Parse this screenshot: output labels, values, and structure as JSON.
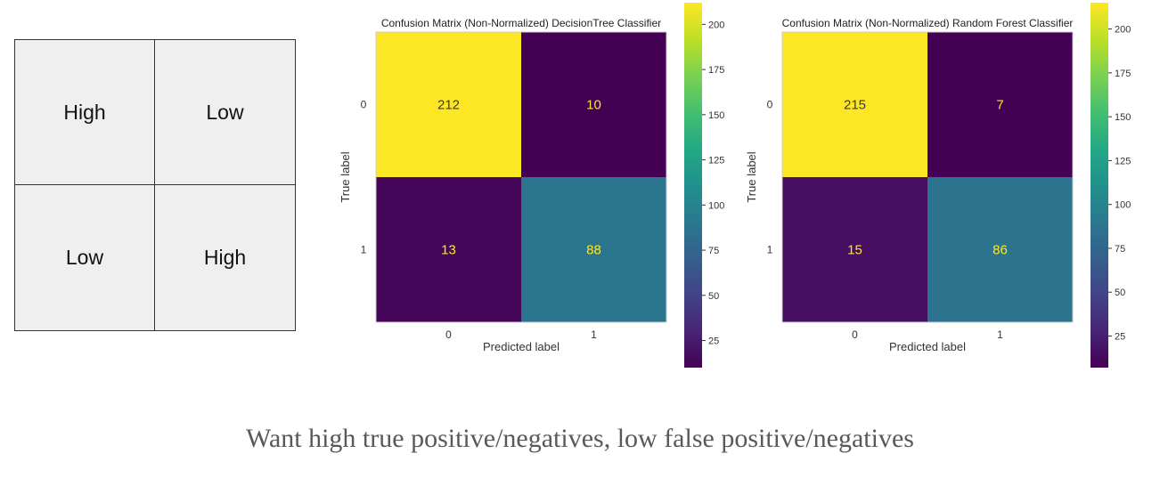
{
  "legend_grid": {
    "cells": [
      "High",
      "Low",
      "Low",
      "High"
    ]
  },
  "chart_data": [
    {
      "type": "heatmap",
      "title": "Confusion Matrix (Non-Normalized) DecisionTree Classifier",
      "xlabel": "Predicted label",
      "ylabel": "True label",
      "x_categories": [
        "0",
        "1"
      ],
      "y_categories": [
        "0",
        "1"
      ],
      "matrix": [
        [
          212,
          10
        ],
        [
          13,
          88
        ]
      ],
      "colorbar": {
        "min": 10,
        "max": 212,
        "ticks": [
          25,
          50,
          75,
          100,
          125,
          150,
          175,
          200
        ],
        "colormap": "viridis"
      },
      "grid": false
    },
    {
      "type": "heatmap",
      "title": "Confusion Matrix (Non-Normalized) Random Forest Classifier",
      "xlabel": "Predicted label",
      "ylabel": "True label",
      "x_categories": [
        "0",
        "1"
      ],
      "y_categories": [
        "0",
        "1"
      ],
      "matrix": [
        [
          215,
          7
        ],
        [
          15,
          86
        ]
      ],
      "colorbar": {
        "min": 7,
        "max": 215,
        "ticks": [
          25,
          50,
          75,
          100,
          125,
          150,
          175,
          200
        ],
        "colormap": "viridis"
      },
      "grid": false
    }
  ],
  "caption": "Want high true positive/negatives, low false positive/negatives",
  "colors": {
    "cell_text_on_dark": "#fde725",
    "cell_text_on_light": "#3b3b3b",
    "axis_text": "#333333"
  }
}
